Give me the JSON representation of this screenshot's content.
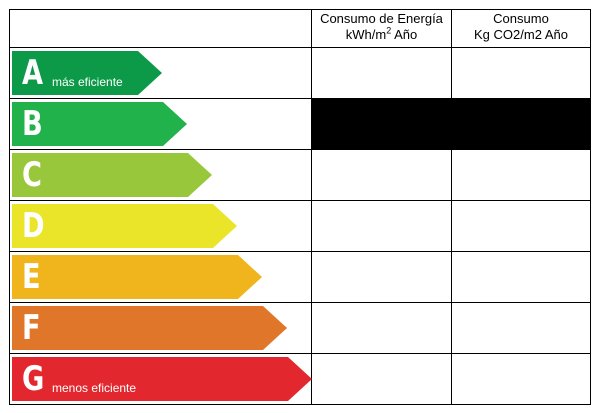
{
  "header": {
    "energy_line1": "Consumo de Energía",
    "energy_line2_prefix": "kWh/m",
    "energy_line2_sup": "2",
    "energy_line2_suffix": " Año",
    "co2_line1": "Consumo",
    "co2_line2": "Kg CO2/m2 Año"
  },
  "ratings": [
    {
      "letter": "A",
      "caption": "más eficiente",
      "color": "#0c9a48"
    },
    {
      "letter": "B",
      "caption": "",
      "color": "#21b24b"
    },
    {
      "letter": "C",
      "caption": "",
      "color": "#98c73c"
    },
    {
      "letter": "D",
      "caption": "",
      "color": "#ebe52a"
    },
    {
      "letter": "E",
      "caption": "",
      "color": "#f0b41c"
    },
    {
      "letter": "F",
      "caption": "",
      "color": "#e0762a"
    },
    {
      "letter": "G",
      "caption": "menos eficiente",
      "color": "#e2282e"
    }
  ],
  "selected_rating": "B"
}
